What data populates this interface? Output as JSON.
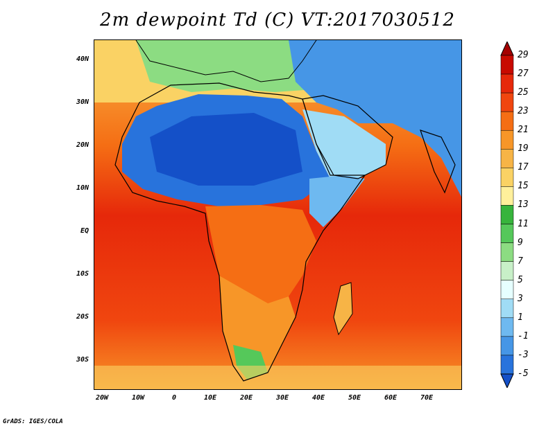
{
  "title": "2m dewpoint Td (C) VT:2017030512",
  "credit": "GrADS: IGES/COLA",
  "lat_labels": [
    "40N",
    "30N",
    "20N",
    "10N",
    "EQ",
    "10S",
    "20S",
    "30S"
  ],
  "lon_labels": [
    "20W",
    "10W",
    "0",
    "10E",
    "20E",
    "30E",
    "40E",
    "50E",
    "60E",
    "70E"
  ],
  "colorbar": {
    "labels": [
      "29",
      "27",
      "25",
      "23",
      "21",
      "19",
      "17",
      "15",
      "13",
      "11",
      "9",
      "7",
      "5",
      "3",
      "1",
      "-1",
      "-3",
      "-5"
    ],
    "colors": [
      "#a50000",
      "#c80a00",
      "#e6280a",
      "#f0460f",
      "#f56e14",
      "#f79628",
      "#f7b446",
      "#fad264",
      "#fff09b",
      "#37b43c",
      "#55c85a",
      "#8cdc82",
      "#c8f0c8",
      "#e6ffff",
      "#a0dcf5",
      "#6eb9f0",
      "#4696e6",
      "#2873dc",
      "#1450c8"
    ]
  }
}
